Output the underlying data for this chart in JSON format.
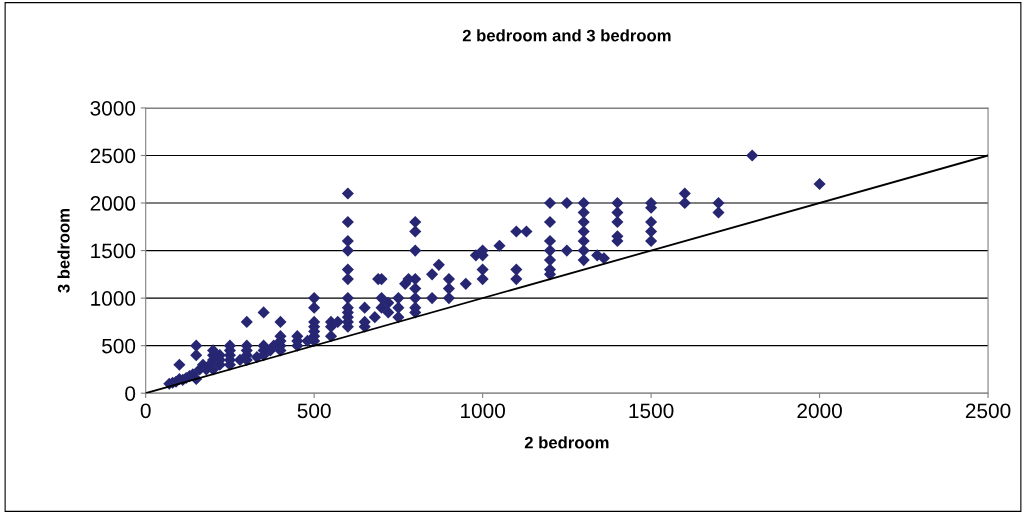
{
  "chart_data": {
    "type": "scatter",
    "title": "2 bedroom and 3 bedroom",
    "xlabel": "2 bedroom",
    "ylabel": "3 bedroom",
    "xlim": [
      0,
      2500
    ],
    "xticks": [
      0,
      500,
      1000,
      1500,
      2000,
      2500
    ],
    "ylim": [
      0,
      3000
    ],
    "yticks": [
      0,
      500,
      1000,
      1500,
      2000,
      2500,
      3000
    ],
    "grid": "y",
    "legend": false,
    "series": [
      {
        "color": "#262673",
        "marker": "diamond",
        "x": [
          70,
          80,
          90,
          100,
          100,
          110,
          120,
          130,
          140,
          150,
          150,
          150,
          160,
          170,
          180,
          190,
          200,
          200,
          200,
          200,
          220,
          220,
          220,
          250,
          250,
          250,
          250,
          250,
          280,
          300,
          300,
          300,
          300,
          300,
          330,
          350,
          350,
          350,
          350,
          370,
          380,
          400,
          400,
          400,
          400,
          400,
          450,
          450,
          450,
          480,
          500,
          500,
          500,
          500,
          500,
          500,
          500,
          550,
          550,
          550,
          570,
          600,
          600,
          600,
          600,
          600,
          600,
          600,
          600,
          600,
          600,
          600,
          600,
          650,
          650,
          650,
          680,
          690,
          700,
          700,
          700,
          720,
          720,
          750,
          750,
          750,
          770,
          780,
          800,
          800,
          800,
          800,
          800,
          800,
          800,
          800,
          850,
          850,
          870,
          900,
          900,
          900,
          950,
          980,
          1000,
          1000,
          1000,
          1000,
          1050,
          1100,
          1100,
          1100,
          1130,
          1200,
          1200,
          1200,
          1200,
          1200,
          1200,
          1200,
          1250,
          1250,
          1300,
          1300,
          1300,
          1300,
          1300,
          1300,
          1300,
          1340,
          1360,
          1400,
          1400,
          1400,
          1400,
          1400,
          1500,
          1500,
          1500,
          1500,
          1500,
          1600,
          1600,
          1700,
          1700,
          1800,
          2000
        ],
        "values": [
          100,
          110,
          120,
          150,
          300,
          140,
          160,
          180,
          200,
          150,
          400,
          500,
          250,
          300,
          250,
          300,
          250,
          350,
          400,
          450,
          300,
          350,
          400,
          300,
          350,
          400,
          450,
          500,
          350,
          350,
          400,
          450,
          500,
          750,
          380,
          400,
          450,
          500,
          850,
          450,
          500,
          450,
          500,
          550,
          600,
          750,
          500,
          550,
          600,
          550,
          550,
          600,
          650,
          700,
          750,
          900,
          1000,
          600,
          700,
          750,
          750,
          700,
          750,
          800,
          850,
          900,
          1000,
          1200,
          1300,
          1500,
          1600,
          1800,
          2100,
          700,
          750,
          900,
          800,
          1200,
          1200,
          900,
          1000,
          850,
          950,
          800,
          900,
          1000,
          1150,
          1200,
          850,
          900,
          1000,
          1100,
          1200,
          1500,
          1700,
          1800,
          1000,
          1250,
          1350,
          1000,
          1100,
          1200,
          1150,
          1450,
          1200,
          1300,
          1450,
          1500,
          1550,
          1200,
          1300,
          1700,
          1700,
          1250,
          1300,
          1400,
          1500,
          1600,
          1800,
          2000,
          1500,
          2000,
          1400,
          1500,
          1600,
          1700,
          1800,
          1900,
          2000,
          1450,
          1420,
          1600,
          1650,
          1800,
          1900,
          2000,
          1600,
          1700,
          1800,
          1950,
          2000,
          2000,
          2100,
          1900,
          2000,
          2500,
          2200
        ]
      },
      {
        "type": "line",
        "color": "#000000",
        "marker": "none",
        "line_style": "solid",
        "x": [
          0,
          2500
        ],
        "values": [
          0,
          2500
        ]
      }
    ]
  }
}
